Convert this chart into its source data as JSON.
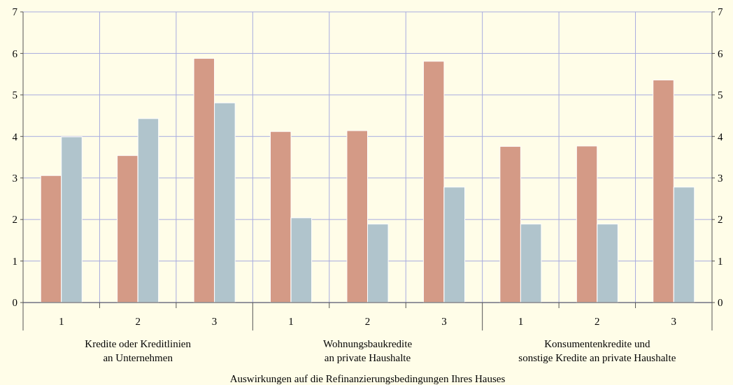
{
  "chart_data": {
    "type": "bar",
    "xlabel": "Auswirkungen auf die Refinanzierungsbedingungen Ihres Hauses",
    "categories": [
      "1",
      "2",
      "3",
      "1",
      "2",
      "3",
      "1",
      "2",
      "3"
    ],
    "series": [
      {
        "color": "#d49a86",
        "values": [
          3.06,
          3.54,
          5.88,
          4.12,
          4.14,
          5.81,
          3.76,
          3.77,
          5.36
        ]
      },
      {
        "color": "#b0c4cc",
        "values": [
          3.99,
          4.43,
          4.81,
          2.04,
          1.89,
          2.78,
          1.89,
          1.89,
          2.78
        ]
      }
    ],
    "annotations": [
      "Kredite oder Kreditlinien\nan Unternehmen",
      "Wohnungsbaukredite\nan private Haushalte",
      "Konsumentenkredite und\nsonstige Kredite an private Haushalte"
    ],
    "ylim": [
      0,
      7
    ],
    "yticks": [
      0,
      1,
      2,
      3,
      4,
      5,
      6,
      7
    ],
    "y2lim": [
      0,
      7
    ],
    "y2ticks": [
      0,
      1,
      2,
      3,
      4,
      5,
      6,
      7
    ],
    "grid": true
  }
}
